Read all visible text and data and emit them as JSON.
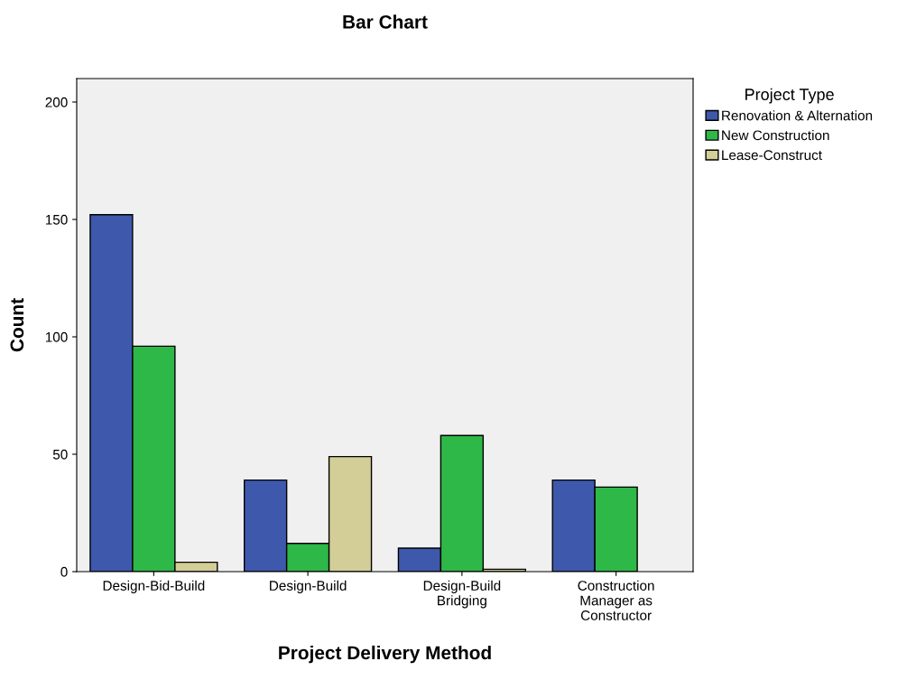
{
  "chart_data": {
    "type": "bar",
    "title": "Bar Chart",
    "xlabel": "Project Delivery Method",
    "ylabel": "Count",
    "legend_title": "Project Type",
    "categories": [
      "Design-Bid-Build",
      "Design-Build",
      "Design-Build\nBridging",
      "Construction\nManager as\nConstructor"
    ],
    "series": [
      {
        "name": "Renovation & Alternation",
        "color": "#3e58ac",
        "values": [
          152,
          39,
          10,
          39
        ]
      },
      {
        "name": "New Construction",
        "color": "#2eb848",
        "values": [
          96,
          12,
          58,
          36
        ]
      },
      {
        "name": "Lease-Construct",
        "color": "#d3ce97",
        "values": [
          4,
          49,
          1,
          null
        ]
      }
    ],
    "ylim": [
      0,
      210
    ],
    "yticks": [
      0,
      50,
      100,
      150,
      200
    ],
    "grid": false,
    "legend": "top right"
  }
}
